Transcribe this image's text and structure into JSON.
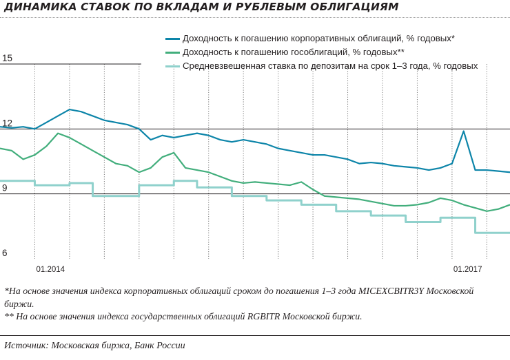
{
  "title": "ДИНАМИКА СТАВОК ПО ВКЛАДАМ И РУБЛЕВЫМ ОБЛИГАЦИЯМ",
  "legend": [
    {
      "label": "Доходность к погашению корпоративных облигаций, % годовых*",
      "color": "#0d85a9"
    },
    {
      "label": "Доходность к погашению гособлигаций, % годовых**",
      "color": "#42ae7c"
    },
    {
      "label": "Средневзвешенная ставка по депозитам на срок 1–3 года, % годовых",
      "color": "#8fd1cc"
    }
  ],
  "notes": [
    "*На основе значения индекса корпоративных облигаций сроком до погашения 1–3 года MICEXCBITR3Y Московской биржи.",
    "** На основе значения индекса государственных облигаций RGBITR Московской биржи."
  ],
  "source": "Источник: Московская биржа, Банк России",
  "chart_data": {
    "type": "line",
    "title": "ДИНАМИКА СТАВОК ПО ВКЛАДАМ И РУБЛЕВЫМ ОБЛИГАЦИЯМ",
    "xlabel": "",
    "ylabel": "",
    "xlim": [
      "2013-10",
      "2017-06"
    ],
    "ylim": [
      6,
      15
    ],
    "yticks": [
      6,
      9,
      12,
      15
    ],
    "ytick_labels": [
      "6",
      "9",
      "12",
      "15"
    ],
    "xtick_labels": [
      {
        "x": "2014-01",
        "label": "01.2014"
      },
      {
        "x": "2017-01",
        "label": "01.2017"
      }
    ],
    "x_gridlines": [
      "2014-01",
      "2014-04",
      "2014-07",
      "2014-10",
      "2015-01",
      "2015-04",
      "2015-07",
      "2015-10",
      "2016-01",
      "2016-04",
      "2016-07",
      "2016-10",
      "2017-01",
      "2017-04"
    ],
    "grid": true,
    "legend_position": "top-right",
    "series": [
      {
        "name": "Доходность к погашению корпоративных облигаций, % годовых*",
        "color": "#0d85a9",
        "x": [
          "2013-10",
          "2013-11",
          "2013-12",
          "2014-01",
          "2014-02",
          "2014-03",
          "2014-04",
          "2014-05",
          "2014-06",
          "2014-07",
          "2014-08",
          "2014-09",
          "2014-10",
          "2014-11",
          "2014-12",
          "2015-01",
          "2015-02",
          "2015-03",
          "2015-04",
          "2015-05",
          "2015-06",
          "2015-07",
          "2015-08",
          "2015-09",
          "2015-10",
          "2015-11",
          "2015-12",
          "2016-01",
          "2016-02",
          "2016-03",
          "2016-04",
          "2016-05",
          "2016-06",
          "2016-07",
          "2016-08",
          "2016-09",
          "2016-10",
          "2016-11",
          "2016-12",
          "2017-01",
          "2017-02",
          "2017-03",
          "2017-04",
          "2017-05",
          "2017-06"
        ],
        "y": [
          12.1,
          12.05,
          12.1,
          12.0,
          12.3,
          12.6,
          12.9,
          12.8,
          12.6,
          12.4,
          12.3,
          12.2,
          12.0,
          11.5,
          11.7,
          11.6,
          11.7,
          11.8,
          11.7,
          11.5,
          11.4,
          11.5,
          11.4,
          11.3,
          11.1,
          11.0,
          10.9,
          10.8,
          10.8,
          10.7,
          10.6,
          10.4,
          10.45,
          10.4,
          10.3,
          10.25,
          10.2,
          10.1,
          10.2,
          10.4,
          11.9,
          10.1,
          10.1,
          10.05,
          10.0
        ]
      },
      {
        "name": "Доходность к погашению гособлигаций, % годовых**",
        "color": "#42ae7c",
        "x": [
          "2013-10",
          "2013-11",
          "2013-12",
          "2014-01",
          "2014-02",
          "2014-03",
          "2014-04",
          "2014-05",
          "2014-06",
          "2014-07",
          "2014-08",
          "2014-09",
          "2014-10",
          "2014-11",
          "2014-12",
          "2015-01",
          "2015-02",
          "2015-03",
          "2015-04",
          "2015-05",
          "2015-06",
          "2015-07",
          "2015-08",
          "2015-09",
          "2015-10",
          "2015-11",
          "2015-12",
          "2016-01",
          "2016-02",
          "2016-03",
          "2016-04",
          "2016-05",
          "2016-06",
          "2016-07",
          "2016-08",
          "2016-09",
          "2016-10",
          "2016-11",
          "2016-12",
          "2017-01",
          "2017-02",
          "2017-03",
          "2017-04",
          "2017-05",
          "2017-06"
        ],
        "y": [
          11.1,
          11.0,
          10.6,
          10.8,
          11.2,
          11.8,
          11.6,
          11.3,
          11.0,
          10.7,
          10.4,
          10.3,
          10.0,
          10.2,
          10.7,
          10.9,
          10.2,
          10.1,
          10.0,
          9.8,
          9.6,
          9.5,
          9.55,
          9.5,
          9.45,
          9.4,
          9.55,
          9.2,
          8.9,
          8.85,
          8.8,
          8.75,
          8.65,
          8.55,
          8.45,
          8.45,
          8.5,
          8.6,
          8.8,
          8.7,
          8.5,
          8.35,
          8.2,
          8.3,
          8.5
        ]
      },
      {
        "name": "Средневзвешенная ставка по депозитам на срок 1–3 года, % годовых",
        "color": "#8fd1cc",
        "x": [
          "2013-10",
          "2013-11",
          "2013-12",
          "2014-01",
          "2014-02",
          "2014-03",
          "2014-04",
          "2014-05",
          "2014-06",
          "2014-07",
          "2014-08",
          "2014-09",
          "2014-10",
          "2014-11",
          "2014-12",
          "2015-01",
          "2015-02",
          "2015-03",
          "2015-04",
          "2015-05",
          "2015-06",
          "2015-07",
          "2015-08",
          "2015-09",
          "2015-10",
          "2015-11",
          "2015-12",
          "2016-01",
          "2016-02",
          "2016-03",
          "2016-04",
          "2016-05",
          "2016-06",
          "2016-07",
          "2016-08",
          "2016-09",
          "2016-10",
          "2016-11",
          "2016-12",
          "2017-01",
          "2017-02",
          "2017-03",
          "2017-04",
          "2017-05",
          "2017-06"
        ],
        "y": [
          9.6,
          9.6,
          9.6,
          9.4,
          9.4,
          9.4,
          9.5,
          9.5,
          8.9,
          8.9,
          8.9,
          8.9,
          9.4,
          9.4,
          9.4,
          9.6,
          9.6,
          9.3,
          9.3,
          9.3,
          8.9,
          8.9,
          8.9,
          8.7,
          8.7,
          8.7,
          8.5,
          8.5,
          8.5,
          8.2,
          8.2,
          8.2,
          8.0,
          8.0,
          8.0,
          7.7,
          7.7,
          7.7,
          7.9,
          7.9,
          7.9,
          7.2,
          7.2,
          7.2,
          7.2
        ]
      }
    ]
  }
}
